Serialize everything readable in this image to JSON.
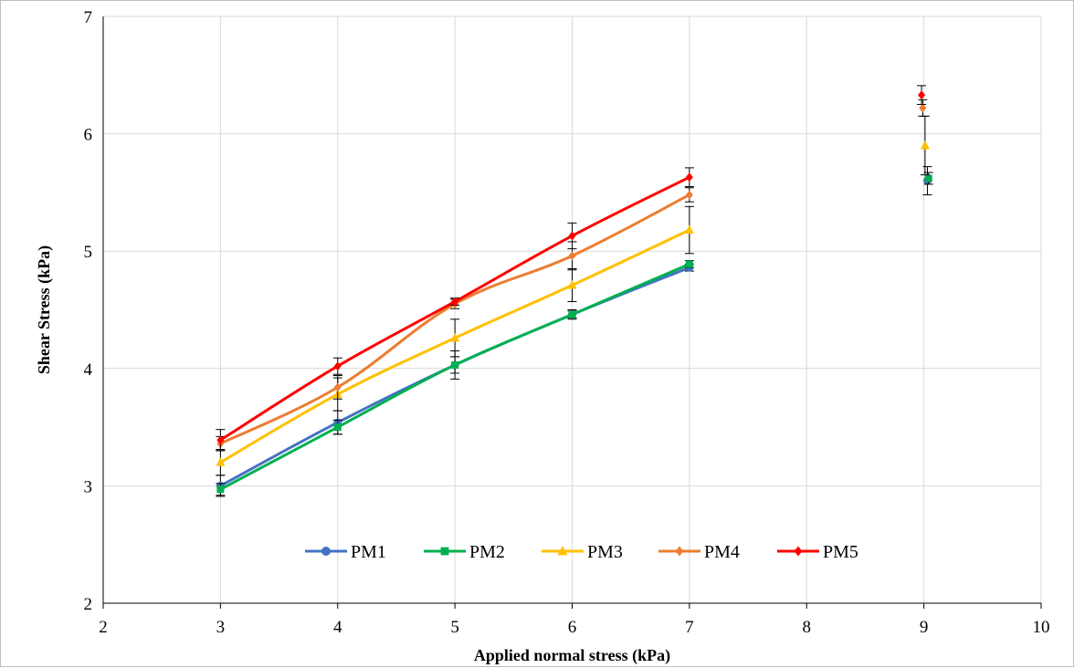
{
  "chart_data": {
    "type": "scatter",
    "xlabel": "Applied normal stress (kPa)",
    "ylabel": "Shear Stress (kPa)",
    "xlim": [
      2,
      10
    ],
    "ylim": [
      2,
      7
    ],
    "x_ticks": [
      "2",
      "3",
      "4",
      "5",
      "6",
      "7",
      "8",
      "9",
      "10"
    ],
    "y_ticks": [
      "2",
      "3",
      "4",
      "5",
      "6",
      "7"
    ],
    "grid": true,
    "legend_position": "bottom-center",
    "series": [
      {
        "name": "PM1",
        "color": "#4472C4",
        "marker": "circle",
        "x": [
          3,
          4,
          5,
          6,
          7
        ],
        "y": [
          3.0,
          3.54,
          4.03,
          4.46,
          4.86
        ],
        "err": [
          0.09,
          0.1,
          0.07,
          0.03,
          0.03
        ],
        "outlier": {
          "x": 9.03,
          "y": 5.6,
          "err": 0.12
        }
      },
      {
        "name": "PM2",
        "color": "#00B050",
        "marker": "square",
        "x": [
          3,
          4,
          5,
          6,
          7
        ],
        "y": [
          2.97,
          3.5,
          4.03,
          4.46,
          4.89
        ],
        "err": [
          0.05,
          0.06,
          0.12,
          0.04,
          0.03
        ],
        "outlier": {
          "x": 9.04,
          "y": 5.62,
          "err": 0.05
        }
      },
      {
        "name": "PM3",
        "color": "#FFC000",
        "marker": "triangle",
        "x": [
          3,
          4,
          5,
          6,
          7
        ],
        "y": [
          3.2,
          3.78,
          4.26,
          4.71,
          5.18
        ],
        "err": [
          0.11,
          0.14,
          0.16,
          0.14,
          0.2
        ],
        "outlier": {
          "x": 9.01,
          "y": 5.9,
          "err": 0.25
        }
      },
      {
        "name": "PM4",
        "color": "#ED7D31",
        "marker": "diamond",
        "x": [
          3,
          4,
          5,
          6,
          7
        ],
        "y": [
          3.36,
          3.84,
          4.55,
          4.96,
          5.48
        ],
        "err": [
          0.06,
          0.1,
          0.04,
          0.12,
          0.06
        ],
        "outlier": {
          "x": 8.99,
          "y": 6.22,
          "err": 0.07
        }
      },
      {
        "name": "PM5",
        "color": "#FF0000",
        "marker": "diamond",
        "x": [
          3,
          4,
          5,
          6,
          7
        ],
        "y": [
          3.39,
          4.02,
          4.57,
          5.13,
          5.63
        ],
        "err": [
          0.09,
          0.07,
          0.03,
          0.11,
          0.08
        ],
        "outlier": {
          "x": 8.98,
          "y": 6.33,
          "err": 0.08
        }
      }
    ]
  }
}
